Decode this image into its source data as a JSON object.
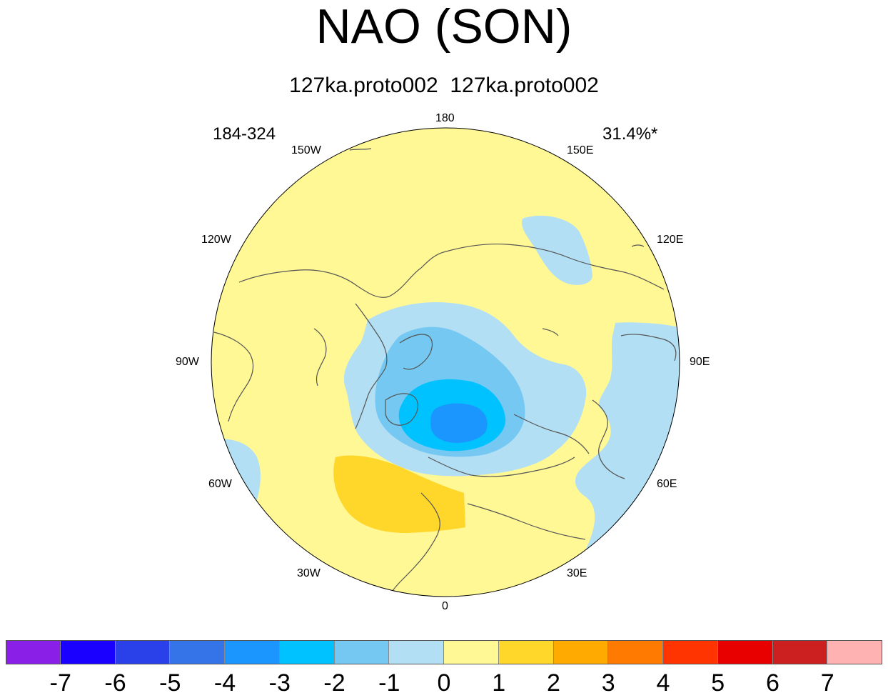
{
  "title": "NAO (SON)",
  "subtitle": "127ka.proto002  127ka.proto002",
  "corner_left": "184-324",
  "corner_right": "31.4%*",
  "longitude_labels": {
    "lon_180": "180",
    "lon_150e": "150E",
    "lon_120e": "120E",
    "lon_90e": "90E",
    "lon_60e": "60E",
    "lon_30e": "30E",
    "lon_0": "0",
    "lon_30w": "30W",
    "lon_60w": "60W",
    "lon_90w": "90W",
    "lon_120w": "120W",
    "lon_150w": "150W"
  },
  "colorbar": {
    "colors": [
      "#8a20e8",
      "#1a00ff",
      "#2a40e8",
      "#3474e8",
      "#1c96ff",
      "#00c2ff",
      "#74c8f2",
      "#b2dff4",
      "#fff895",
      "#ffd62a",
      "#ffaa00",
      "#ff7a00",
      "#ff3400",
      "#e80000",
      "#cc1f1f",
      "#ffb2b2"
    ],
    "labels": [
      "-7",
      "-6",
      "-5",
      "-4",
      "-3",
      "-2",
      "-1",
      "0",
      "1",
      "2",
      "3",
      "4",
      "5",
      "6",
      "7"
    ]
  },
  "colors": {
    "background_field": "#fff895",
    "negative_1": "#b2dff4",
    "negative_2": "#74c8f2",
    "negative_3": "#00c2ff",
    "negative_4": "#1c96ff",
    "positive_1": "#ffd62a",
    "coastline": "#555555"
  }
}
